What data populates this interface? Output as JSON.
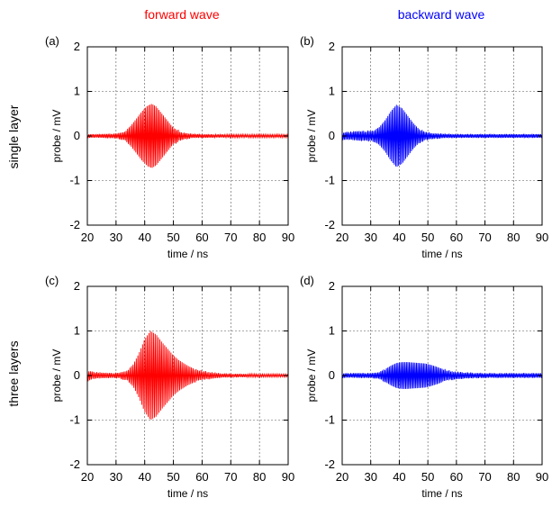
{
  "column_titles": [
    {
      "text": "forward wave",
      "color": "#ff0000"
    },
    {
      "text": "backward wave",
      "color": "#0000ff"
    }
  ],
  "row_titles": [
    "single layer",
    "three layers"
  ],
  "chart_data": [
    {
      "type": "line",
      "panel_label": "(a)",
      "xlabel": "time / ns",
      "ylabel": "probe / mV",
      "xlim": [
        20,
        90
      ],
      "ylim": [
        -2,
        2
      ],
      "xticks": [
        20,
        30,
        40,
        50,
        60,
        70,
        80,
        90
      ],
      "yticks": [
        -2,
        -1,
        0,
        1,
        2
      ],
      "grid": true,
      "color": "#ff0000",
      "series": [
        {
          "x": [
            20,
            25,
            30,
            33,
            35,
            37,
            39,
            41,
            42.5,
            44,
            46,
            48,
            50,
            53,
            56,
            60,
            70,
            80,
            90
          ],
          "y": [
            0.04,
            0.04,
            0.05,
            0.1,
            0.22,
            0.38,
            0.55,
            0.68,
            0.72,
            0.66,
            0.5,
            0.34,
            0.18,
            0.08,
            0.05,
            0.04,
            0.03,
            0.03,
            0.03
          ]
        }
      ]
    },
    {
      "type": "line",
      "panel_label": "(b)",
      "xlabel": "time / ns",
      "ylabel": "probe / mV",
      "xlim": [
        20,
        90
      ],
      "ylim": [
        -2,
        2
      ],
      "xticks": [
        20,
        30,
        40,
        50,
        60,
        70,
        80,
        90
      ],
      "yticks": [
        -2,
        -1,
        0,
        1,
        2
      ],
      "grid": true,
      "color": "#0000ff",
      "series": [
        {
          "x": [
            20,
            25,
            28,
            31,
            33,
            35,
            37,
            39,
            41,
            43,
            45,
            47,
            49,
            52,
            55,
            60,
            70,
            80,
            90
          ],
          "y": [
            0.08,
            0.1,
            0.1,
            0.12,
            0.2,
            0.35,
            0.55,
            0.7,
            0.62,
            0.45,
            0.28,
            0.15,
            0.09,
            0.06,
            0.05,
            0.04,
            0.04,
            0.04,
            0.04
          ]
        }
      ]
    },
    {
      "type": "line",
      "panel_label": "(c)",
      "xlabel": "time / ns",
      "ylabel": "probe / mV",
      "xlim": [
        20,
        90
      ],
      "ylim": [
        -2,
        2
      ],
      "xticks": [
        20,
        30,
        40,
        50,
        60,
        70,
        80,
        90
      ],
      "yticks": [
        -2,
        -1,
        0,
        1,
        2
      ],
      "grid": true,
      "color": "#ff0000",
      "series": [
        {
          "x": [
            20,
            22,
            25,
            28,
            31,
            34,
            36,
            38,
            40,
            42,
            44,
            46,
            48,
            50,
            52,
            55,
            58,
            62,
            66,
            70,
            80,
            90
          ],
          "y": [
            0.12,
            0.08,
            0.06,
            0.05,
            0.06,
            0.12,
            0.25,
            0.5,
            0.82,
            1.0,
            0.92,
            0.75,
            0.6,
            0.45,
            0.34,
            0.22,
            0.13,
            0.08,
            0.05,
            0.04,
            0.03,
            0.03
          ]
        }
      ]
    },
    {
      "type": "line",
      "panel_label": "(d)",
      "xlabel": "time / ns",
      "ylabel": "probe / mV",
      "xlim": [
        20,
        90
      ],
      "ylim": [
        -2,
        2
      ],
      "xticks": [
        20,
        30,
        40,
        50,
        60,
        70,
        80,
        90
      ],
      "yticks": [
        -2,
        -1,
        0,
        1,
        2
      ],
      "grid": true,
      "color": "#0000ff",
      "series": [
        {
          "x": [
            20,
            25,
            30,
            33,
            35,
            37,
            39,
            41,
            43,
            45,
            47,
            49,
            51,
            53,
            55,
            57,
            60,
            65,
            70,
            80,
            90
          ],
          "y": [
            0.05,
            0.05,
            0.05,
            0.08,
            0.14,
            0.22,
            0.28,
            0.3,
            0.3,
            0.29,
            0.28,
            0.27,
            0.24,
            0.2,
            0.15,
            0.11,
            0.08,
            0.06,
            0.05,
            0.05,
            0.05
          ]
        }
      ]
    }
  ]
}
